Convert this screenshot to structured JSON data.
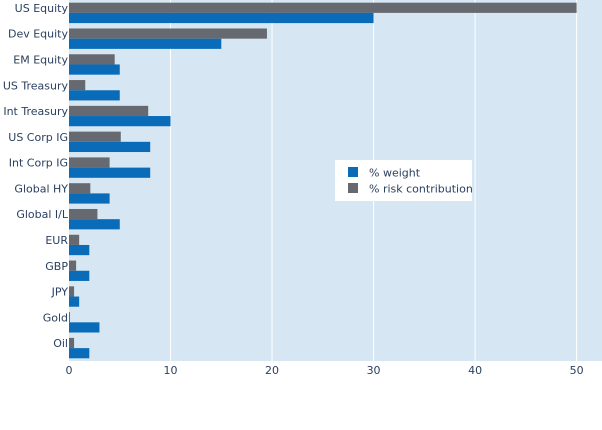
{
  "colors": {
    "plot_background": "#d6e6f3",
    "gridline": "#ffffff",
    "weight": "#0a6cb8",
    "risk": "#666a70",
    "text": "#2a3f5f"
  },
  "chart_data": {
    "type": "bar",
    "orientation": "horizontal",
    "categories": [
      "US Equity",
      "Dev Equity",
      "EM Equity",
      "US Treasury",
      "Int Treasury",
      "US Corp IG",
      "Int Corp IG",
      "Global HY",
      "Global I/L",
      "EUR",
      "GBP",
      "JPY",
      "Gold",
      "Oil"
    ],
    "series": [
      {
        "name": "% weight",
        "values": [
          30,
          15,
          5,
          5,
          10,
          8,
          8,
          4,
          5,
          2,
          2,
          1,
          3,
          2
        ]
      },
      {
        "name": "% risk contribution",
        "values": [
          50,
          19.5,
          4.5,
          1.6,
          7.8,
          5.1,
          4,
          2.1,
          2.8,
          1,
          0.7,
          0.5,
          0.1,
          0.5
        ]
      }
    ],
    "xlim": [
      0,
      52.5
    ],
    "xticks": [
      0,
      10,
      20,
      30,
      40,
      50
    ],
    "grid": true,
    "legend_position": "right-middle",
    "title": "",
    "xlabel": "",
    "ylabel": ""
  }
}
